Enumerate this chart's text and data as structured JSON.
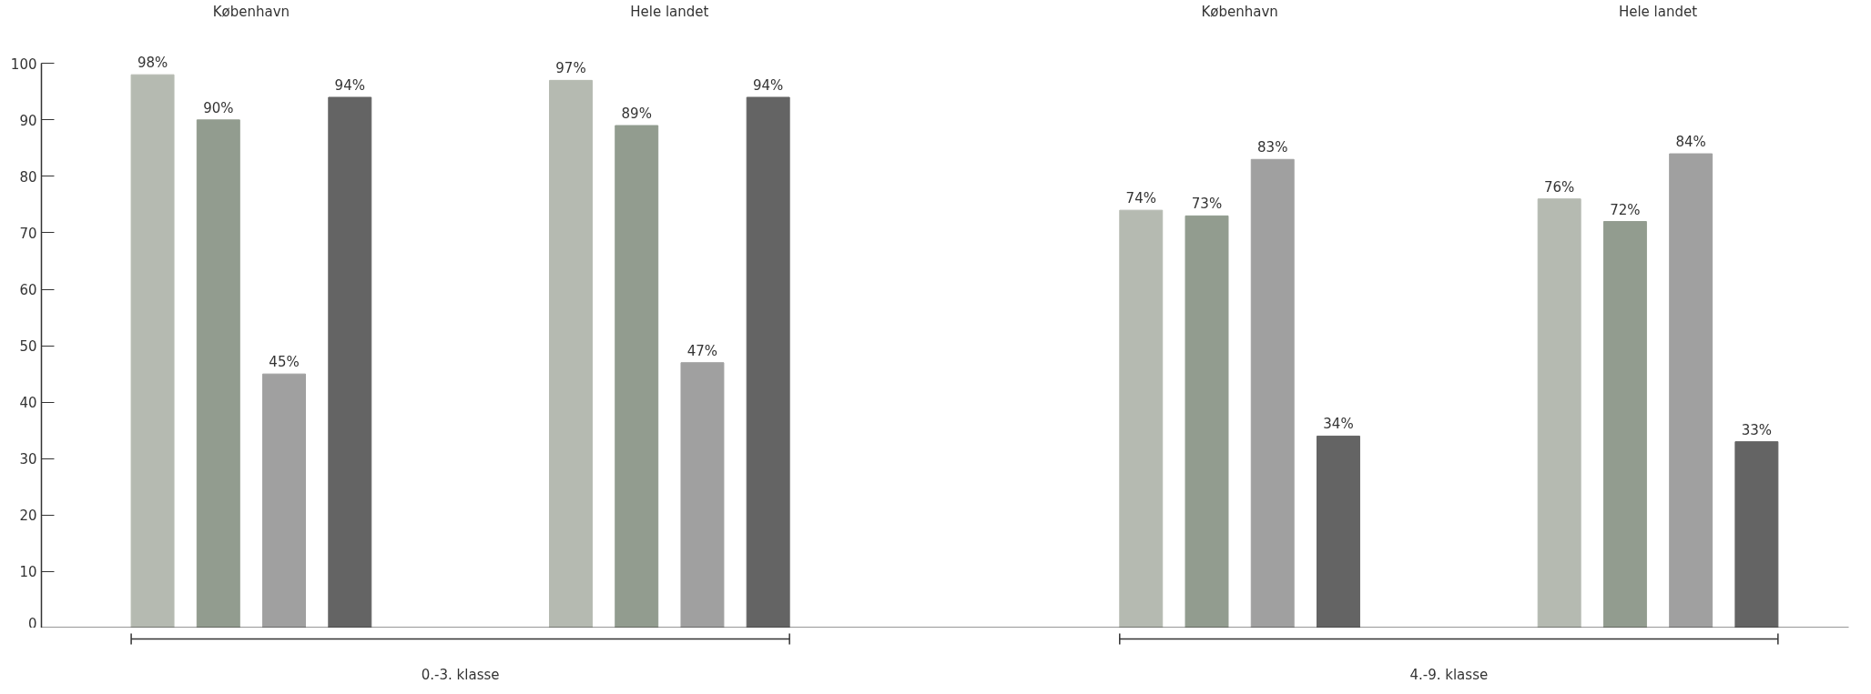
{
  "chart_data": {
    "type": "bar",
    "categories": [
      "København",
      "Hele landet",
      "København",
      "Hele landet"
    ],
    "series": [
      {
        "color": "#b5bab1",
        "values": [
          98,
          97,
          74,
          76
        ],
        "value_labels": [
          "98%",
          "97%",
          "74%",
          "76%"
        ]
      },
      {
        "color": "#929c8f",
        "values": [
          90,
          89,
          73,
          72
        ],
        "value_labels": [
          "90%",
          "89%",
          "73%",
          "72%"
        ]
      },
      {
        "color": "#a0a0a0",
        "values": [
          45,
          47,
          83,
          84
        ],
        "value_labels": [
          "45%",
          "47%",
          "83%",
          "84%"
        ]
      },
      {
        "color": "#646464",
        "values": [
          94,
          94,
          34,
          33
        ],
        "value_labels": [
          "94%",
          "94%",
          "34%",
          "33%"
        ]
      }
    ],
    "ylim": [
      0,
      100
    ],
    "yticks": [
      0,
      10,
      20,
      30,
      40,
      50,
      60,
      70,
      80,
      90,
      100
    ],
    "grid": false,
    "annotations": [
      "0.-3. klasse",
      "4.-9. klasse"
    ]
  }
}
